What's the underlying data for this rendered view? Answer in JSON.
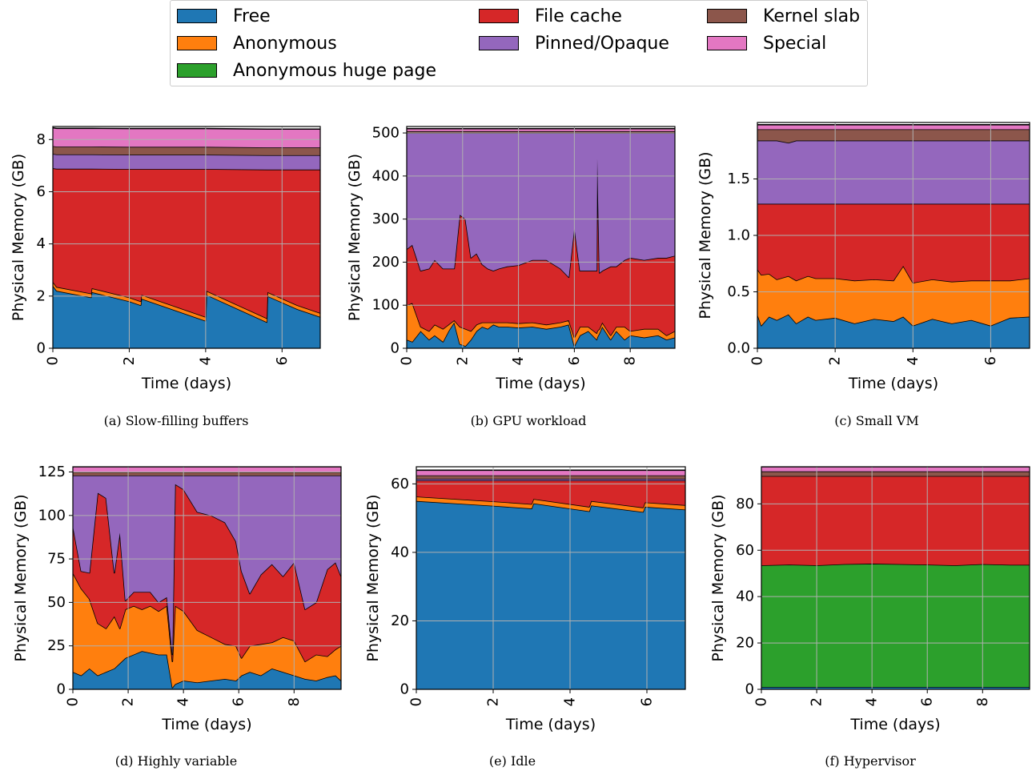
{
  "colors": {
    "Free": "#1f77b4",
    "Anonymous": "#ff7f0e",
    "Anonymous huge page": "#2ca02c",
    "File cache": "#d62728",
    "Pinned/Opaque": "#9467bd",
    "Kernel slab": "#8c564b",
    "Special": "#e377c2"
  },
  "legend": {
    "items": [
      "Free",
      "Anonymous",
      "Anonymous huge page",
      "File cache",
      "Pinned/Opaque",
      "Kernel slab",
      "Special"
    ]
  },
  "chart_data": [
    {
      "type": "area",
      "stacked": true,
      "caption": "(a) Slow-filling buffers",
      "xlabel": "Time (days)",
      "ylabel": "Physical Memory (GB)",
      "xlim": [
        0,
        7
      ],
      "ylim": [
        0,
        8.5
      ],
      "xticks": [
        0,
        2,
        4,
        6
      ],
      "yticks": [
        0,
        2,
        4,
        6,
        8
      ],
      "tick_format": "int",
      "grid": true,
      "x": [
        0,
        0.1,
        1.0,
        1.02,
        2.0,
        2.3,
        2.32,
        4.0,
        4.02,
        5.6,
        5.62,
        6.4,
        7.0
      ],
      "series": [
        {
          "name": "Free",
          "values": [
            2.4,
            2.2,
            1.95,
            2.15,
            1.8,
            1.65,
            1.9,
            1.05,
            2.05,
            1.0,
            2.0,
            1.5,
            1.2
          ]
        },
        {
          "name": "Anonymous",
          "values": [
            0.15,
            0.15,
            0.15,
            0.15,
            0.15,
            0.15,
            0.15,
            0.15,
            0.15,
            0.15,
            0.15,
            0.15,
            0.15
          ]
        },
        {
          "name": "File cache",
          "values": [
            4.35,
            4.53,
            4.78,
            4.58,
            4.92,
            5.07,
            4.82,
            5.67,
            4.67,
            5.7,
            4.7,
            5.2,
            5.5
          ]
        },
        {
          "name": "Pinned/Opaque",
          "values": [
            0.55,
            0.55,
            0.55,
            0.55,
            0.55,
            0.55,
            0.55,
            0.55,
            0.55,
            0.55,
            0.55,
            0.55,
            0.55
          ]
        },
        {
          "name": "Kernel slab",
          "values": [
            0.3,
            0.3,
            0.3,
            0.3,
            0.3,
            0.3,
            0.3,
            0.3,
            0.3,
            0.3,
            0.3,
            0.3,
            0.3
          ]
        },
        {
          "name": "Special",
          "values": [
            0.7,
            0.7,
            0.7,
            0.7,
            0.7,
            0.7,
            0.7,
            0.7,
            0.7,
            0.7,
            0.7,
            0.7,
            0.7
          ]
        }
      ]
    },
    {
      "type": "area",
      "stacked": true,
      "caption": "(b) GPU workload",
      "xlabel": "Time (days)",
      "ylabel": "Physical Memory (GB)",
      "xlim": [
        0,
        9.6
      ],
      "ylim": [
        0,
        515
      ],
      "xticks": [
        0,
        2,
        4,
        6,
        8
      ],
      "yticks": [
        0,
        100,
        200,
        300,
        400,
        500
      ],
      "tick_format": "int",
      "grid": true,
      "x": [
        0,
        0.2,
        0.5,
        0.8,
        1.0,
        1.3,
        1.5,
        1.7,
        1.9,
        2.1,
        2.3,
        2.5,
        2.7,
        2.9,
        3.1,
        3.3,
        3.6,
        4.0,
        4.5,
        5.0,
        5.5,
        5.8,
        6.0,
        6.2,
        6.5,
        6.8,
        6.82,
        6.9,
        7.0,
        7.3,
        7.5,
        7.8,
        8.0,
        8.5,
        9.0,
        9.3,
        9.6
      ],
      "series": [
        {
          "name": "Free",
          "values": [
            20,
            15,
            40,
            20,
            30,
            15,
            40,
            60,
            10,
            5,
            20,
            40,
            50,
            45,
            55,
            50,
            50,
            48,
            50,
            45,
            50,
            55,
            5,
            30,
            40,
            20,
            25,
            35,
            50,
            20,
            40,
            20,
            30,
            25,
            30,
            20,
            25
          ]
        },
        {
          "name": "Anonymous",
          "values": [
            80,
            90,
            10,
            20,
            25,
            30,
            15,
            5,
            40,
            40,
            20,
            15,
            10,
            15,
            5,
            10,
            10,
            10,
            10,
            10,
            10,
            10,
            20,
            20,
            10,
            15,
            15,
            10,
            10,
            10,
            10,
            30,
            10,
            20,
            15,
            10,
            15
          ]
        },
        {
          "name": "File cache",
          "values": [
            130,
            135,
            130,
            145,
            150,
            140,
            130,
            120,
            260,
            255,
            170,
            165,
            135,
            125,
            120,
            125,
            130,
            135,
            145,
            150,
            125,
            100,
            255,
            130,
            130,
            145,
            400,
            130,
            120,
            160,
            140,
            155,
            170,
            160,
            165,
            180,
            175
          ]
        },
        {
          "name": "Pinned/Opaque",
          "values": [
            270,
            260,
            320,
            315,
            295,
            315,
            315,
            315,
            190,
            200,
            290,
            280,
            305,
            315,
            320,
            315,
            310,
            307,
            295,
            295,
            315,
            335,
            220,
            320,
            320,
            320,
            60,
            325,
            320,
            310,
            310,
            295,
            290,
            295,
            290,
            290,
            285
          ]
        },
        {
          "name": "Kernel slab",
          "values": [
            4,
            4,
            4,
            4,
            4,
            4,
            4,
            4,
            4,
            4,
            4,
            4,
            4,
            4,
            4,
            4,
            4,
            4,
            4,
            4,
            4,
            4,
            4,
            4,
            4,
            4,
            4,
            4,
            4,
            4,
            4,
            4,
            4,
            4,
            4,
            4,
            4
          ]
        },
        {
          "name": "Special",
          "values": [
            6,
            6,
            6,
            6,
            6,
            6,
            6,
            6,
            6,
            6,
            6,
            6,
            6,
            6,
            6,
            6,
            6,
            6,
            6,
            6,
            6,
            6,
            6,
            6,
            6,
            6,
            6,
            6,
            6,
            6,
            6,
            6,
            6,
            6,
            6,
            6,
            6
          ]
        }
      ]
    },
    {
      "type": "area",
      "stacked": true,
      "caption": "(c) Small VM",
      "xlabel": "Time (days)",
      "ylabel": "Physical Memory (GB)",
      "xlim": [
        0,
        7
      ],
      "ylim": [
        0,
        2.0
      ],
      "xticks": [
        0,
        2,
        4,
        6
      ],
      "yticks": [
        0.0,
        0.5,
        1.0,
        1.5
      ],
      "tick_format": "1f",
      "grid": true,
      "x": [
        0,
        0.1,
        0.3,
        0.5,
        0.8,
        1.0,
        1.3,
        1.5,
        2.0,
        2.5,
        3.0,
        3.5,
        3.75,
        4.0,
        4.5,
        5.0,
        5.5,
        6.0,
        6.5,
        7.0
      ],
      "series": [
        {
          "name": "Free",
          "values": [
            0.3,
            0.2,
            0.28,
            0.25,
            0.3,
            0.22,
            0.28,
            0.25,
            0.27,
            0.22,
            0.26,
            0.24,
            0.28,
            0.2,
            0.26,
            0.22,
            0.25,
            0.2,
            0.27,
            0.28
          ]
        },
        {
          "name": "Anonymous",
          "values": [
            0.4,
            0.45,
            0.38,
            0.36,
            0.34,
            0.38,
            0.36,
            0.37,
            0.35,
            0.38,
            0.35,
            0.36,
            0.45,
            0.38,
            0.35,
            0.37,
            0.35,
            0.4,
            0.33,
            0.34
          ]
        },
        {
          "name": "File cache",
          "values": [
            0.58,
            0.63,
            0.62,
            0.67,
            0.64,
            0.68,
            0.64,
            0.66,
            0.66,
            0.68,
            0.67,
            0.68,
            0.55,
            0.7,
            0.67,
            0.69,
            0.68,
            0.68,
            0.68,
            0.66
          ]
        },
        {
          "name": "Pinned/Opaque",
          "values": [
            0.56,
            0.56,
            0.56,
            0.56,
            0.54,
            0.56,
            0.56,
            0.56,
            0.56,
            0.56,
            0.56,
            0.56,
            0.56,
            0.56,
            0.56,
            0.56,
            0.56,
            0.56,
            0.56,
            0.56
          ]
        },
        {
          "name": "Kernel slab",
          "values": [
            0.1,
            0.1,
            0.1,
            0.1,
            0.12,
            0.1,
            0.1,
            0.1,
            0.1,
            0.1,
            0.1,
            0.1,
            0.1,
            0.1,
            0.1,
            0.1,
            0.1,
            0.1,
            0.1,
            0.1
          ]
        },
        {
          "name": "Special",
          "values": [
            0.04,
            0.04,
            0.04,
            0.04,
            0.04,
            0.04,
            0.04,
            0.04,
            0.04,
            0.04,
            0.04,
            0.04,
            0.04,
            0.04,
            0.04,
            0.04,
            0.04,
            0.04,
            0.04,
            0.04
          ]
        }
      ]
    },
    {
      "type": "area",
      "stacked": true,
      "caption": "(d) Highly variable",
      "xlabel": "Time (days)",
      "ylabel": "Physical Memory (GB)",
      "xlim": [
        0,
        9.7
      ],
      "ylim": [
        0,
        128
      ],
      "xticks": [
        0,
        2,
        4,
        6,
        8
      ],
      "yticks": [
        0,
        25,
        50,
        75,
        100,
        125
      ],
      "tick_format": "int",
      "grid": true,
      "x": [
        0,
        0.3,
        0.6,
        0.9,
        1.2,
        1.5,
        1.7,
        1.9,
        2.2,
        2.5,
        2.8,
        3.1,
        3.4,
        3.6,
        3.7,
        4.0,
        4.5,
        5.0,
        5.5,
        5.9,
        6.1,
        6.4,
        6.8,
        7.2,
        7.6,
        8.0,
        8.4,
        8.8,
        9.2,
        9.5,
        9.7
      ],
      "series": [
        {
          "name": "Free",
          "values": [
            10,
            8,
            12,
            8,
            10,
            12,
            15,
            18,
            20,
            22,
            21,
            20,
            20,
            1,
            3,
            5,
            4,
            5,
            6,
            5,
            8,
            10,
            8,
            12,
            10,
            8,
            6,
            5,
            7,
            8,
            5
          ]
        },
        {
          "name": "Anonymous",
          "values": [
            57,
            50,
            40,
            30,
            25,
            30,
            20,
            28,
            28,
            24,
            27,
            25,
            28,
            15,
            45,
            40,
            30,
            25,
            20,
            20,
            10,
            15,
            18,
            15,
            20,
            20,
            10,
            15,
            12,
            15,
            20
          ]
        },
        {
          "name": "File cache",
          "values": [
            27,
            10,
            15,
            75,
            75,
            25,
            55,
            5,
            8,
            10,
            8,
            5,
            5,
            4,
            70,
            70,
            68,
            70,
            70,
            60,
            50,
            30,
            40,
            45,
            35,
            45,
            30,
            30,
            50,
            50,
            40
          ]
        },
        {
          "name": "Pinned/Opaque",
          "values": [
            29,
            55,
            56,
            10,
            13,
            56,
            33,
            72,
            67,
            67,
            67,
            73,
            70,
            103,
            5,
            8,
            21,
            23,
            27,
            38,
            55,
            68,
            57,
            51,
            58,
            50,
            77,
            73,
            54,
            50,
            58
          ]
        },
        {
          "name": "Kernel slab",
          "values": [
            2,
            2,
            2,
            2,
            2,
            2,
            2,
            2,
            2,
            2,
            2,
            2,
            2,
            2,
            2,
            2,
            2,
            2,
            2,
            2,
            2,
            2,
            2,
            2,
            2,
            2,
            2,
            2,
            2,
            2,
            2
          ]
        },
        {
          "name": "Special",
          "values": [
            3,
            3,
            3,
            3,
            3,
            3,
            3,
            3,
            3,
            3,
            3,
            3,
            3,
            3,
            3,
            3,
            3,
            3,
            3,
            3,
            3,
            3,
            3,
            3,
            3,
            3,
            3,
            3,
            3,
            3,
            3
          ]
        }
      ]
    },
    {
      "type": "area",
      "stacked": true,
      "caption": "(e) Idle",
      "xlabel": "Time (days)",
      "ylabel": "Physical Memory (GB)",
      "xlim": [
        0,
        7
      ],
      "ylim": [
        0,
        65
      ],
      "xticks": [
        0,
        2,
        4,
        6
      ],
      "yticks": [
        0,
        20,
        40,
        60
      ],
      "tick_format": "int",
      "grid": true,
      "x": [
        0,
        1.0,
        2.0,
        3.0,
        3.05,
        4.5,
        4.55,
        5.9,
        5.95,
        7.0
      ],
      "series": [
        {
          "name": "Free",
          "values": [
            55,
            54.3,
            53.6,
            52.8,
            54.3,
            52.0,
            53.7,
            51.8,
            53.3,
            52.5
          ]
        },
        {
          "name": "Anonymous",
          "values": [
            1.3,
            1.3,
            1.3,
            1.3,
            1.3,
            1.3,
            1.3,
            1.3,
            1.3,
            1.3
          ]
        },
        {
          "name": "File cache",
          "values": [
            4.7,
            5.4,
            6.1,
            6.9,
            5.4,
            7.7,
            6.0,
            7.9,
            6.4,
            7.2
          ]
        },
        {
          "name": "Pinned/Opaque",
          "values": [
            0.5,
            0.5,
            0.5,
            0.5,
            0.5,
            0.5,
            0.5,
            0.5,
            0.5,
            0.5
          ]
        },
        {
          "name": "Kernel slab",
          "values": [
            1.0,
            1.0,
            1.0,
            1.0,
            1.0,
            1.0,
            1.0,
            1.0,
            1.0,
            1.0
          ]
        },
        {
          "name": "Special",
          "values": [
            1.5,
            1.5,
            1.5,
            1.5,
            1.5,
            1.5,
            1.5,
            1.5,
            1.5,
            1.5
          ]
        }
      ]
    },
    {
      "type": "area",
      "stacked": true,
      "caption": "(f) Hypervisor",
      "xlabel": "Time (days)",
      "ylabel": "Physical Memory (GB)",
      "xlim": [
        0,
        9.7
      ],
      "ylim": [
        0,
        96
      ],
      "xticks": [
        0,
        2,
        4,
        6,
        8
      ],
      "yticks": [
        0,
        20,
        40,
        60,
        80
      ],
      "tick_format": "int",
      "grid": true,
      "x": [
        0,
        1.0,
        2.0,
        3.0,
        4.0,
        5.0,
        6.0,
        7.0,
        8.0,
        9.0,
        9.7
      ],
      "series": [
        {
          "name": "Free",
          "values": [
            1,
            1,
            1,
            1,
            1,
            1,
            1,
            1,
            1,
            1,
            1
          ]
        },
        {
          "name": "Anonymous huge page",
          "values": [
            52.5,
            52.8,
            52.5,
            53.0,
            53.2,
            53.0,
            52.8,
            52.5,
            53.0,
            52.7,
            52.7
          ]
        },
        {
          "name": "File cache",
          "values": [
            38.5,
            38.2,
            38.5,
            38.0,
            37.8,
            38.0,
            38.2,
            38.5,
            38.0,
            38.3,
            38.3
          ]
        },
        {
          "name": "Kernel slab",
          "values": [
            2,
            2,
            2,
            2,
            2,
            2,
            2,
            2,
            2,
            2,
            2
          ]
        },
        {
          "name": "Special",
          "values": [
            2,
            2,
            2,
            2,
            2,
            2,
            2,
            2,
            2,
            2,
            2
          ]
        }
      ]
    }
  ]
}
